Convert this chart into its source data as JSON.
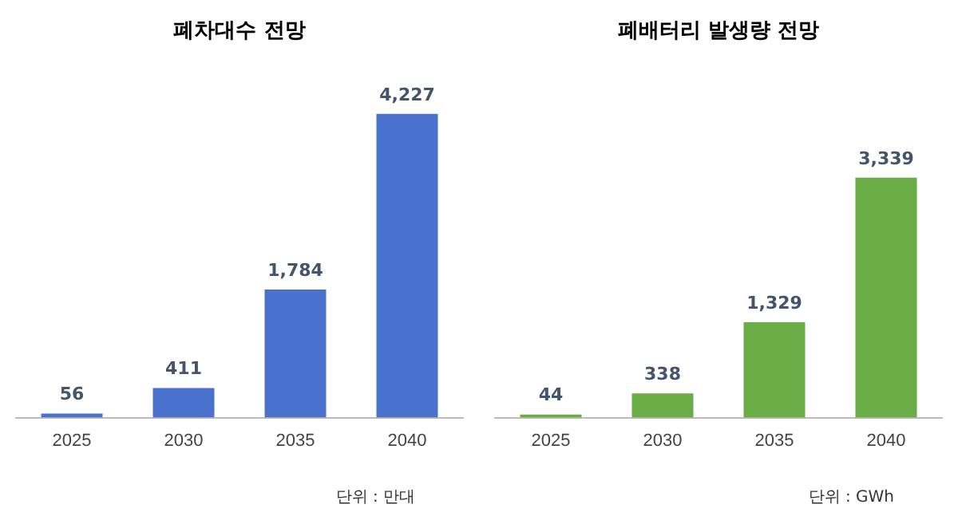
{
  "chart_data": [
    {
      "type": "bar",
      "title": "폐차대수 전망",
      "categories": [
        "2025",
        "2030",
        "2035",
        "2040"
      ],
      "values": [
        56,
        411,
        1784,
        4227
      ],
      "color": "#4a72cc",
      "value_labels": [
        "56",
        "411",
        "1,784",
        "4,227"
      ],
      "annotations": [
        "단위 : 만대"
      ],
      "grid": false,
      "legend": false
    },
    {
      "type": "bar",
      "title": "폐배터리 발생량 전망",
      "categories": [
        "2025",
        "2030",
        "2035",
        "2040"
      ],
      "values": [
        44,
        338,
        1329,
        3339
      ],
      "color": "#6aac45",
      "value_labels": [
        "44",
        "338",
        "1,329",
        "3,339"
      ],
      "annotations": [
        "단위 : GWh"
      ],
      "grid": false,
      "legend": false
    }
  ]
}
